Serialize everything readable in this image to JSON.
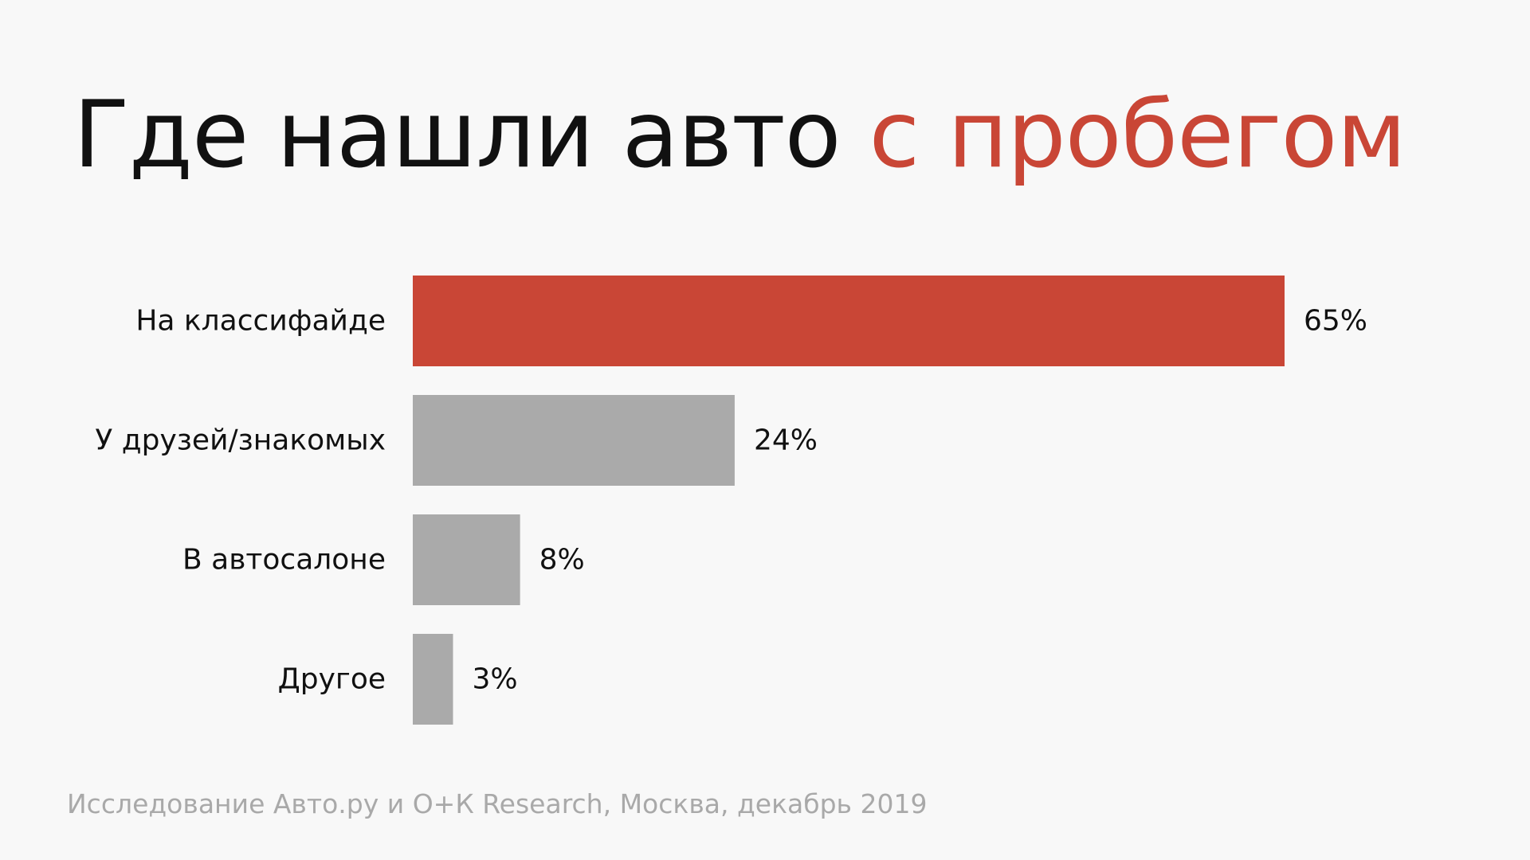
{
  "header": {
    "title_part1": "Где нашли авто",
    "title_part2": "с пробегом"
  },
  "colors": {
    "accent": "#c94636",
    "bar_gray": "#aaaaaa",
    "text": "#111111",
    "source_text": "#a9a9a9",
    "background": "#f8f8f8"
  },
  "chart_data": {
    "type": "bar",
    "orientation": "horizontal",
    "categories": [
      "На классифайде",
      "У друзей/знакомых",
      "В автосалоне",
      "Другое"
    ],
    "values": [
      65,
      24,
      8,
      3
    ],
    "value_labels": [
      "65%",
      "24%",
      "8%",
      "3%"
    ],
    "highlight_index": 0,
    "xlim": [
      0,
      65
    ],
    "grid": false,
    "legend": "none"
  },
  "footer": {
    "source": "Исследование Авто.ру и О+К Research, Москва, декабрь 2019"
  }
}
